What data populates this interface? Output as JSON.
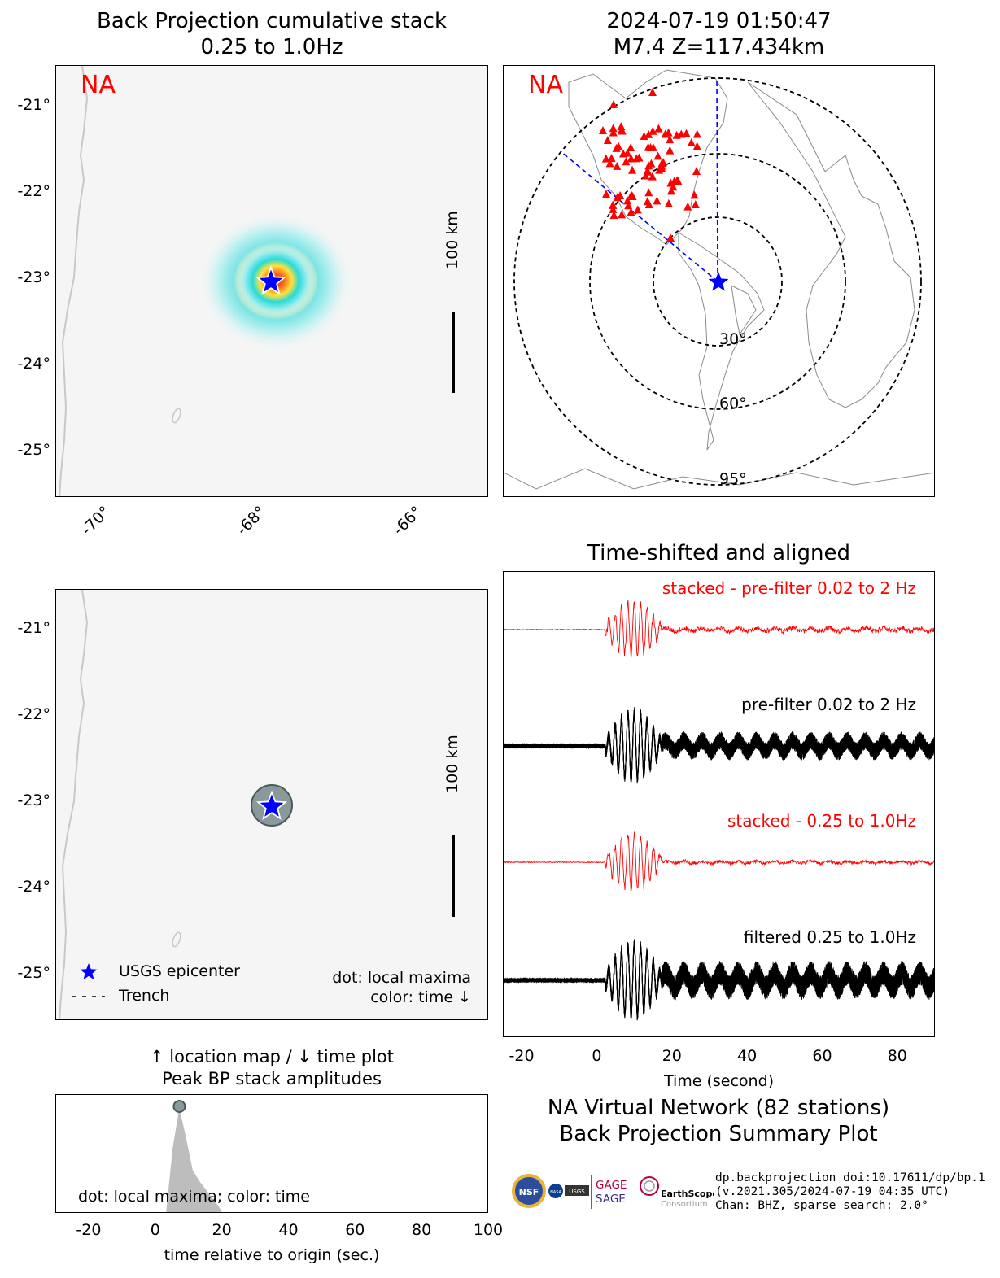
{
  "panels": {
    "bp_stack": {
      "title_line1": "Back Projection cumulative stack",
      "title_line2": "0.25 to 1.0Hz",
      "network_label": "NA",
      "lat_ticks": [
        "-21°",
        "-22°",
        "-23°",
        "-24°",
        "-25°"
      ],
      "lon_ticks": [
        "-70°",
        "-68°",
        "-66°"
      ],
      "scale_label": "100 km"
    },
    "station_map": {
      "title_line1": "2024-07-19 01:50:47",
      "title_line2": "M7.4 Z=117.434km",
      "network_label": "NA",
      "ring_labels": [
        "30°",
        "60°",
        "95°"
      ]
    },
    "local_maxima": {
      "lat_ticks": [
        "-21°",
        "-22°",
        "-23°",
        "-24°",
        "-25°"
      ],
      "scale_label": "100 km",
      "legend_epicenter": "USGS epicenter",
      "legend_trench": "Trench",
      "note_line1": "dot: local maxima",
      "note_line2": "color: time ↓"
    },
    "peak_amplitudes": {
      "title_line1": "↑ location map / ↓ time plot",
      "title_line2": "Peak BP stack amplitudes",
      "note": "dot: local maxima; color: time",
      "xlabel": "time relative to origin (sec.)"
    },
    "waveforms": {
      "title": "Time-shifted and aligned",
      "label_stacked_prefilter": "stacked - pre-filter 0.02 to 2 Hz",
      "label_prefilter": "pre-filter 0.02 to 2 Hz",
      "label_stacked_filtered": "stacked - 0.25 to 1.0Hz",
      "label_filtered": "filtered 0.25 to 1.0Hz",
      "xlabel": "Time (second)"
    },
    "summary": {
      "line1": "NA Virtual Network (82 stations)",
      "line2": "Back Projection Summary Plot"
    },
    "credits": {
      "line1": "dp.backprojection doi:10.17611/dp/bp.1",
      "line2": "(v.2021.305/2024-07-19 04:35 UTC)",
      "line3": "Chan: BHZ, sparse search: 2.0°",
      "logo_gage": "GAGE",
      "logo_sage": "SAGE",
      "logo_earthscope": "EarthScope",
      "logo_consortium": "Consortium",
      "logo_nsf": "NSF",
      "logo_nasa": "NASA",
      "logo_usgs": "USGS"
    }
  },
  "colors": {
    "accent_red": "#ff0000",
    "epicenter_blue": "#0000ff",
    "map_background": "#f5f5f5",
    "peak_fill": "#bdbdbd",
    "maxima_dot": "#8a9a9a"
  },
  "chart_data": [
    {
      "type": "heatmap",
      "title": "Back Projection cumulative stack 0.25 to 1.0Hz",
      "x_unit": "longitude",
      "y_unit": "latitude",
      "xlim": [
        -70.6,
        -65.1
      ],
      "ylim": [
        -25.5,
        -20.6
      ],
      "peak": {
        "lon": -67.8,
        "lat": -23.05
      },
      "epicenter": {
        "lon": -67.87,
        "lat": -23.03
      }
    },
    {
      "type": "scatter",
      "title": "Peak BP stack amplitudes",
      "xlabel": "time relative to origin (sec.)",
      "xlim": [
        -30,
        100
      ],
      "x_ticks": [
        -20,
        0,
        20,
        40,
        60,
        80,
        100
      ],
      "envelope_x": [
        3,
        5,
        7,
        9,
        11,
        13,
        15,
        17,
        19,
        20
      ],
      "envelope_y": [
        0.0,
        0.6,
        0.97,
        0.7,
        0.4,
        0.3,
        0.22,
        0.14,
        0.06,
        0.0
      ],
      "maxima": [
        {
          "t": 7,
          "amp": 1.0
        }
      ]
    },
    {
      "type": "line",
      "title": "Time-shifted and aligned",
      "xlabel": "Time (second)",
      "xlim": [
        -25,
        90
      ],
      "x_ticks": [
        -20,
        0,
        20,
        40,
        60,
        80
      ],
      "series": [
        {
          "name": "stacked - pre-filter 0.02 to 2 Hz",
          "color": "#ff0000"
        },
        {
          "name": "pre-filter 0.02 to 2 Hz",
          "color": "#000000"
        },
        {
          "name": "stacked - 0.25 to 1.0Hz",
          "color": "#ff0000"
        },
        {
          "name": "filtered 0.25 to 1.0Hz",
          "color": "#000000"
        }
      ]
    }
  ]
}
